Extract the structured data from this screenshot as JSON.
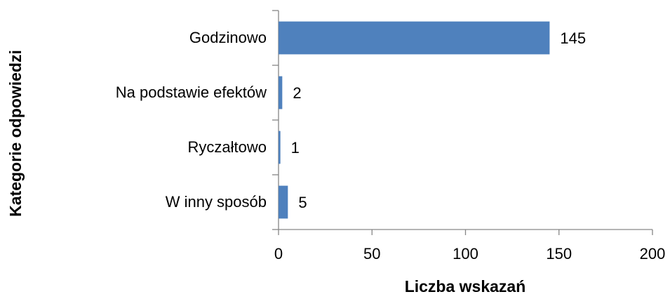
{
  "chart_data": {
    "type": "bar",
    "orientation": "horizontal",
    "categories": [
      "Godzinowo",
      "Na podstawie efektów",
      "Ryczałtowo",
      "W inny sposób"
    ],
    "values": [
      145,
      2,
      1,
      5
    ],
    "color": "#4f81bd",
    "xlim": [
      0,
      200
    ],
    "xticks": [
      0,
      50,
      100,
      150,
      200
    ],
    "xlabel": "Liczba wskazań",
    "ylabel": "Kategorie odpowiedzi",
    "grid": false
  }
}
